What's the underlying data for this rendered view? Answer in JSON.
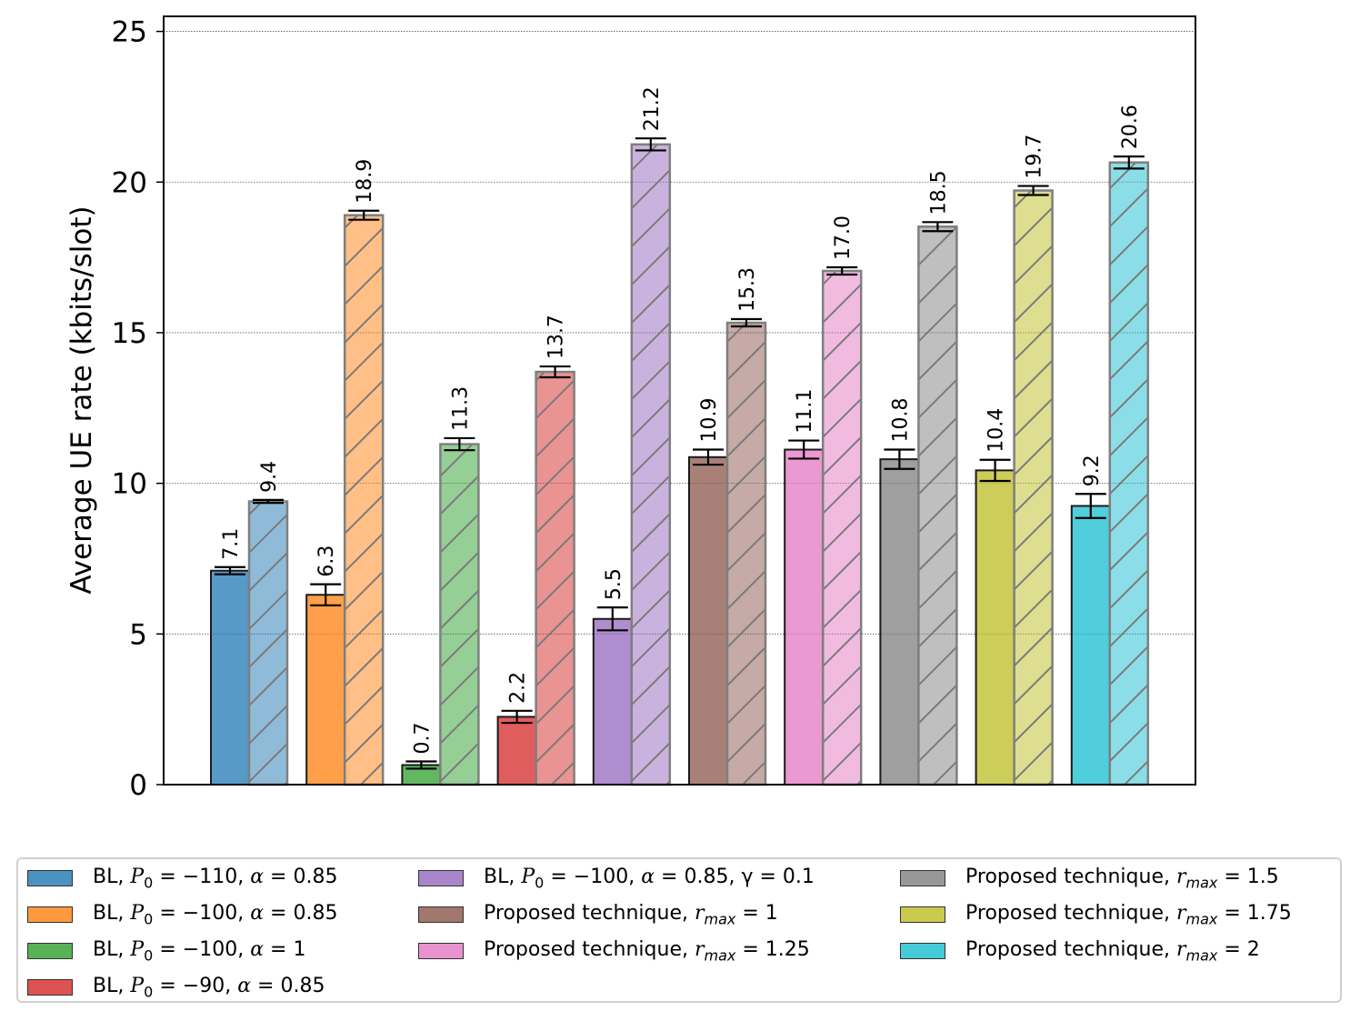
{
  "chart_data": {
    "type": "bar",
    "ylabel": "Average UE rate (kbits/slot)",
    "xlabel": "",
    "ylim": [
      0,
      25.5
    ],
    "yticks": [
      0,
      5,
      10,
      15,
      20,
      25
    ],
    "ytick_labels": [
      "0",
      "5",
      "10",
      "15",
      "20",
      "25"
    ],
    "grid": "y-dotted",
    "legend_position": "bottom",
    "groups": [
      {
        "legend": "BL, P0 = −110, α = 0.85",
        "color": "#1f77b4",
        "values": [
          7.1,
          9.4
        ],
        "labels": [
          "7.1",
          "9.4"
        ],
        "err": [
          0.12,
          0.05
        ]
      },
      {
        "legend": "BL, P0 = −100, α = 0.85",
        "color": "#ff7f0e",
        "values": [
          6.3,
          18.9
        ],
        "labels": [
          "6.3",
          "18.9"
        ],
        "err": [
          0.35,
          0.15
        ]
      },
      {
        "legend": "BL, P0 = −100, α = 1",
        "color": "#2ca02c",
        "values": [
          0.65,
          11.3
        ],
        "labels": [
          "0.7",
          "11.3"
        ],
        "err": [
          0.12,
          0.2
        ]
      },
      {
        "legend": "BL, P0 = −90, α = 0.85",
        "color": "#d62728",
        "values": [
          2.25,
          13.7
        ],
        "labels": [
          "2.2",
          "13.7"
        ],
        "err": [
          0.2,
          0.18
        ]
      },
      {
        "legend": "BL, P0 = −100, α = 0.85, γ = 0.1",
        "color": "#9467bd",
        "values": [
          5.5,
          21.25
        ],
        "labels": [
          "5.5",
          "21.2"
        ],
        "err": [
          0.38,
          0.2
        ]
      },
      {
        "legend": "Proposed technique, rmax = 1",
        "color": "#8c564b",
        "values": [
          10.87,
          15.33
        ],
        "labels": [
          "10.9",
          "15.3"
        ],
        "err": [
          0.25,
          0.12
        ]
      },
      {
        "legend": "Proposed technique, rmax = 1.25",
        "color": "#e377c2",
        "values": [
          11.12,
          17.05
        ],
        "labels": [
          "11.1",
          "17.0"
        ],
        "err": [
          0.3,
          0.12
        ]
      },
      {
        "legend": "Proposed technique, rmax = 1.5",
        "color": "#7f7f7f",
        "values": [
          10.8,
          18.52
        ],
        "labels": [
          "10.8",
          "18.5"
        ],
        "err": [
          0.32,
          0.15
        ]
      },
      {
        "legend": "Proposed technique, rmax = 1.75",
        "color": "#bcbd22",
        "values": [
          10.43,
          19.72
        ],
        "labels": [
          "10.4",
          "19.7"
        ],
        "err": [
          0.35,
          0.15
        ]
      },
      {
        "legend": "Proposed technique, rmax = 2",
        "color": "#17becf",
        "values": [
          9.25,
          20.65
        ],
        "labels": [
          "9.2",
          "20.6"
        ],
        "err": [
          0.4,
          0.2
        ]
      }
    ]
  },
  "legend": {
    "items": [
      {
        "pre": "BL, ",
        "var": "P",
        "sub": "0",
        "post": " = −110, ",
        "var2": "α",
        "post2": " = 0.85"
      },
      {
        "pre": "BL, ",
        "var": "P",
        "sub": "0",
        "post": " = −100, ",
        "var2": "α",
        "post2": " = 0.85"
      },
      {
        "pre": "BL, ",
        "var": "P",
        "sub": "0",
        "post": " = −100, ",
        "var2": "α",
        "post2": " = 1"
      },
      {
        "pre": "BL, ",
        "var": "P",
        "sub": "0",
        "post": " = −90, ",
        "var2": "α",
        "post2": " = 0.85"
      },
      {
        "pre": "BL, ",
        "var": "P",
        "sub": "0",
        "post": " = −100, ",
        "var2": "α",
        "post2": " = 0.85, γ = 0.1"
      },
      {
        "pre": "Proposed technique, ",
        "var": "r",
        "sub": "max",
        "post": " = 1",
        "var2": "",
        "post2": ""
      },
      {
        "pre": "Proposed technique, ",
        "var": "r",
        "sub": "max",
        "post": " = 1.25",
        "var2": "",
        "post2": ""
      },
      {
        "pre": "Proposed technique, ",
        "var": "r",
        "sub": "max",
        "post": " = 1.5",
        "var2": "",
        "post2": ""
      },
      {
        "pre": "Proposed technique, ",
        "var": "r",
        "sub": "max",
        "post": " = 1.75",
        "var2": "",
        "post2": ""
      },
      {
        "pre": "Proposed technique, ",
        "var": "r",
        "sub": "max",
        "post": " = 2",
        "var2": "",
        "post2": ""
      }
    ]
  }
}
